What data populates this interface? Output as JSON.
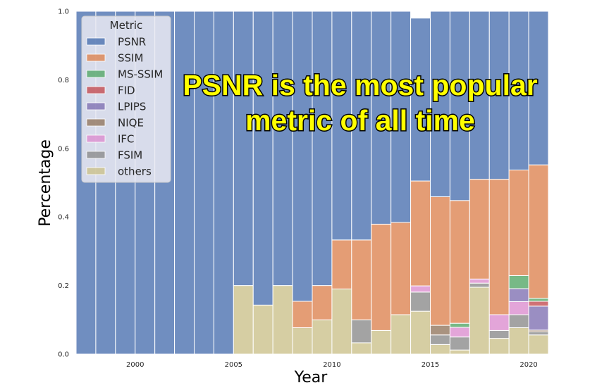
{
  "chart_data": {
    "type": "bar",
    "stacked": true,
    "normalized": true,
    "xlabel": "Year",
    "ylabel": "Percentage",
    "ylim": [
      0,
      1
    ],
    "xlim": [
      1997,
      2021
    ],
    "xticks": [
      2000,
      2005,
      2010,
      2015,
      2020
    ],
    "yticks": [
      0.0,
      0.2,
      0.4,
      0.6,
      0.8,
      1.0
    ],
    "ytick_labels": [
      "0.0",
      "0.2",
      "0.4",
      "0.6",
      "0.8",
      "1.0"
    ],
    "legend_title": "Metric",
    "legend_position": "top-left",
    "annotation": [
      "PSNR is the most popular",
      "metric of all time"
    ],
    "years": [
      1997,
      1998,
      1999,
      2000,
      2001,
      2002,
      2003,
      2004,
      2005,
      2006,
      2007,
      2008,
      2009,
      2010,
      2011,
      2012,
      2013,
      2014,
      2015,
      2016,
      2017,
      2018,
      2019,
      2020
    ],
    "series": [
      {
        "name": "others",
        "color": "#ccc28c",
        "values": [
          0,
          0,
          0,
          0,
          0,
          0,
          0,
          0,
          0.2,
          0.143,
          0.2,
          0.077,
          0.1,
          0.19,
          0.033,
          0.069,
          0.115,
          0.125,
          0.028,
          0.012,
          0.195,
          0.046,
          0.077,
          0.056
        ]
      },
      {
        "name": "FSIM",
        "color": "#8c8c8c",
        "values": [
          0,
          0,
          0,
          0,
          0,
          0,
          0,
          0,
          0,
          0,
          0,
          0,
          0,
          0,
          0.067,
          0,
          0,
          0.056,
          0.028,
          0.038,
          0.012,
          0.023,
          0.038,
          0.009
        ]
      },
      {
        "name": "IFC",
        "color": "#dc8fd0",
        "values": [
          0,
          0,
          0,
          0,
          0,
          0,
          0,
          0,
          0,
          0,
          0,
          0,
          0,
          0,
          0,
          0,
          0,
          0.018,
          0,
          0.028,
          0.012,
          0.046,
          0.038,
          0
        ]
      },
      {
        "name": "NIQE",
        "color": "#937860",
        "values": [
          0,
          0,
          0,
          0,
          0,
          0,
          0,
          0,
          0,
          0,
          0,
          0,
          0,
          0,
          0,
          0,
          0,
          0,
          0.028,
          0,
          0,
          0,
          0,
          0.005
        ]
      },
      {
        "name": "LPIPS",
        "color": "#8172b3",
        "values": [
          0,
          0,
          0,
          0,
          0,
          0,
          0,
          0,
          0,
          0,
          0,
          0,
          0,
          0,
          0,
          0,
          0,
          0,
          0,
          0,
          0,
          0,
          0.038,
          0.07
        ]
      },
      {
        "name": "FID",
        "color": "#c44e52",
        "values": [
          0,
          0,
          0,
          0,
          0,
          0,
          0,
          0,
          0,
          0,
          0,
          0,
          0,
          0,
          0,
          0,
          0,
          0,
          0,
          0,
          0,
          0,
          0,
          0.014
        ]
      },
      {
        "name": "MS-SSIM",
        "color": "#55a868",
        "values": [
          0,
          0,
          0,
          0,
          0,
          0,
          0,
          0,
          0,
          0,
          0,
          0,
          0,
          0,
          0,
          0,
          0,
          0,
          0,
          0.012,
          0,
          0,
          0.038,
          0.009
        ]
      },
      {
        "name": "SSIM",
        "color": "#dd8452",
        "values": [
          0,
          0,
          0,
          0,
          0,
          0,
          0,
          0.0,
          0,
          0,
          0,
          0.077,
          0.1,
          0.143,
          0.233,
          0.31,
          0.269,
          0.306,
          0.375,
          0.358,
          0.291,
          0.395,
          0.308,
          0.389
        ]
      },
      {
        "name": "PSNR",
        "color": "#4c72b0",
        "values": [
          1,
          1,
          1,
          1,
          1,
          1,
          1,
          1,
          0.8,
          0.857,
          0.8,
          0.846,
          0.8,
          0.667,
          0.667,
          0.621,
          0.616,
          0.475,
          0.541,
          0.552,
          0.49,
          0.49,
          0.463,
          0.448
        ]
      }
    ],
    "legend_order": [
      "PSNR",
      "SSIM",
      "MS-SSIM",
      "FID",
      "LPIPS",
      "NIQE",
      "IFC",
      "FSIM",
      "others"
    ]
  }
}
